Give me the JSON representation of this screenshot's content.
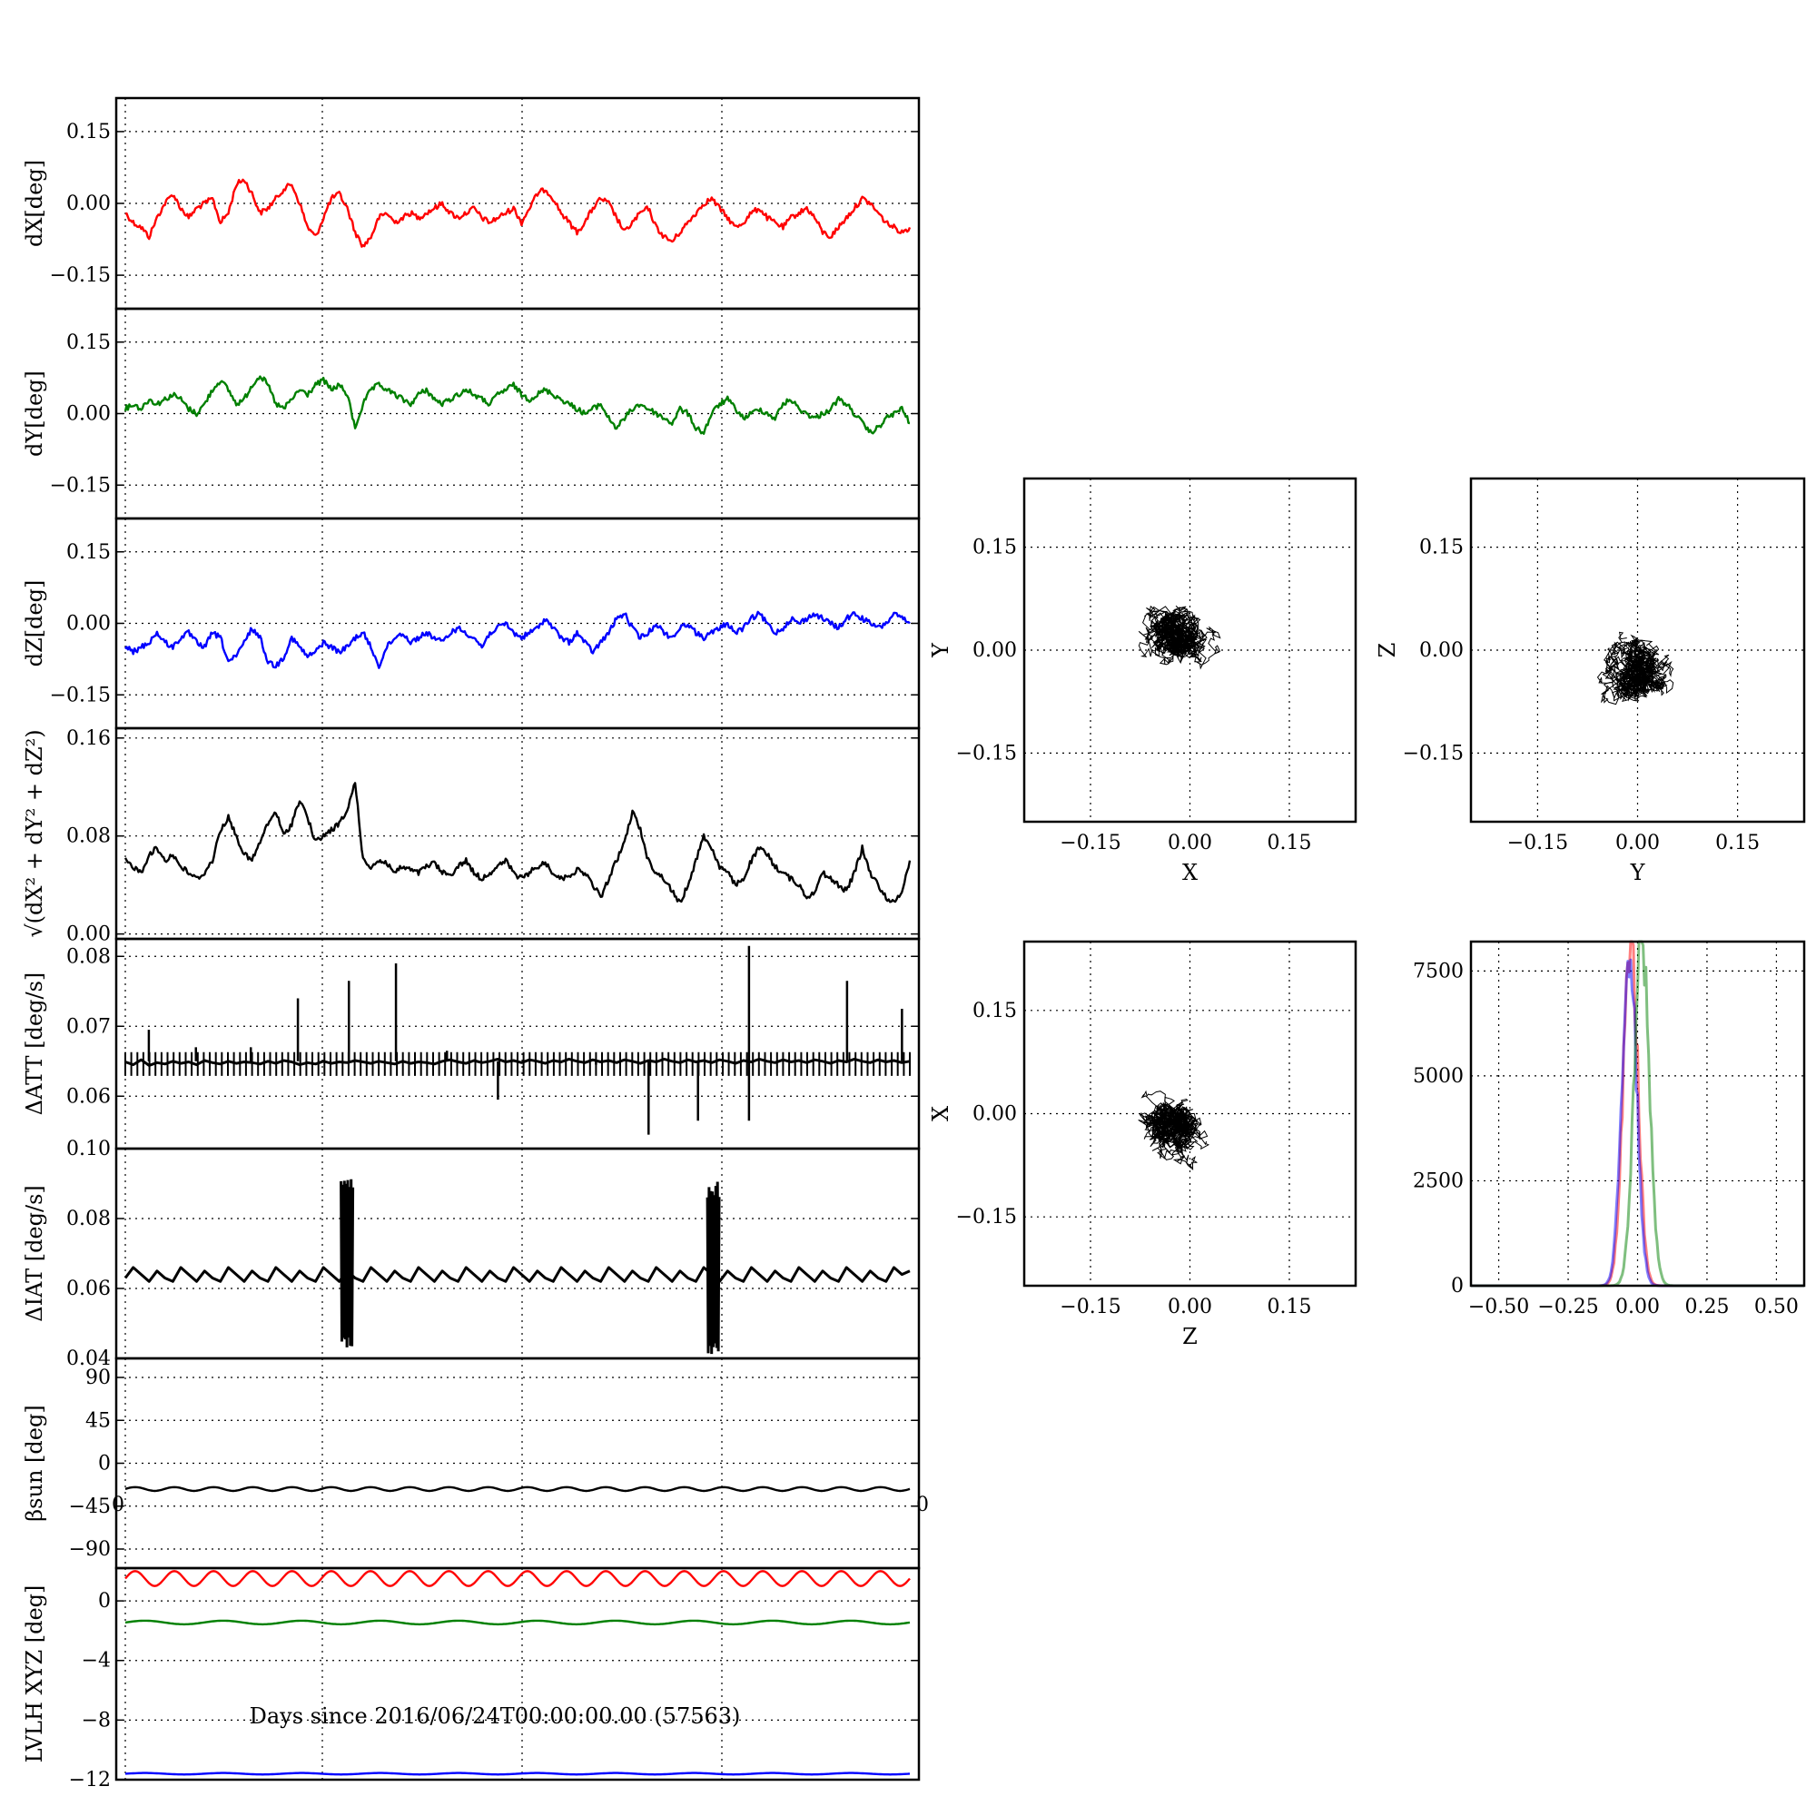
{
  "chart_data": [
    {
      "id": "dx",
      "type": "line",
      "ylabel": "dX[deg]",
      "ylim": [
        -0.22,
        0.22
      ],
      "yticks": [
        0.15,
        0.0,
        -0.15
      ],
      "ytick_labels": [
        "0.15",
        "0.00",
        "−0.15"
      ],
      "grid": true,
      "series": [
        {
          "color": "#ff0000",
          "values": [
            -0.02,
            -0.04,
            -0.05,
            -0.07,
            -0.03,
            0.0,
            0.02,
            -0.01,
            -0.03,
            -0.01,
            0.0,
            0.01,
            -0.04,
            -0.02,
            0.04,
            0.05,
            0.02,
            -0.02,
            -0.01,
            0.01,
            0.03,
            0.04,
            0.0,
            -0.05,
            -0.07,
            -0.03,
            0.01,
            0.02,
            -0.01,
            -0.06,
            -0.09,
            -0.07,
            -0.03,
            -0.02,
            -0.04,
            -0.03,
            -0.02,
            -0.03,
            -0.02,
            -0.01,
            0.0,
            -0.02,
            -0.03,
            -0.02,
            -0.01,
            -0.03,
            -0.04,
            -0.03,
            -0.02,
            -0.01,
            -0.04,
            -0.01,
            0.02,
            0.03,
            0.01,
            -0.02,
            -0.04,
            -0.06,
            -0.04,
            -0.01,
            0.01,
            0.0,
            -0.03,
            -0.06,
            -0.04,
            -0.02,
            -0.01,
            -0.05,
            -0.07,
            -0.08,
            -0.06,
            -0.04,
            -0.02,
            0.0,
            0.01,
            -0.01,
            -0.03,
            -0.05,
            -0.04,
            -0.02,
            -0.01,
            -0.03,
            -0.04,
            -0.05,
            -0.03,
            -0.02,
            -0.01,
            -0.03,
            -0.06,
            -0.07,
            -0.05,
            -0.03,
            -0.01,
            0.01,
            0.0,
            -0.02,
            -0.04,
            -0.05,
            -0.06,
            -0.05
          ]
        }
      ]
    },
    {
      "id": "dy",
      "type": "line",
      "ylabel": "dY[deg]",
      "ylim": [
        -0.22,
        0.22
      ],
      "yticks": [
        0.15,
        0.0,
        -0.15
      ],
      "ytick_labels": [
        "0.15",
        "0.00",
        "−0.15"
      ],
      "grid": true,
      "series": [
        {
          "color": "#008000",
          "values": [
            0.01,
            0.02,
            0.01,
            0.03,
            0.02,
            0.03,
            0.04,
            0.03,
            0.01,
            0.0,
            0.02,
            0.05,
            0.07,
            0.05,
            0.02,
            0.03,
            0.06,
            0.08,
            0.06,
            0.02,
            0.01,
            0.03,
            0.05,
            0.04,
            0.06,
            0.07,
            0.05,
            0.06,
            0.04,
            -0.03,
            0.02,
            0.05,
            0.06,
            0.05,
            0.04,
            0.03,
            0.02,
            0.04,
            0.05,
            0.03,
            0.02,
            0.03,
            0.04,
            0.05,
            0.04,
            0.03,
            0.02,
            0.04,
            0.05,
            0.06,
            0.04,
            0.03,
            0.04,
            0.05,
            0.04,
            0.03,
            0.02,
            0.01,
            0.0,
            0.01,
            0.02,
            -0.01,
            -0.03,
            -0.01,
            0.01,
            0.02,
            0.01,
            0.0,
            -0.01,
            -0.02,
            0.01,
            0.0,
            -0.03,
            -0.04,
            0.0,
            0.02,
            0.03,
            0.01,
            -0.01,
            0.0,
            0.01,
            0.0,
            -0.01,
            0.02,
            0.03,
            0.01,
            0.0,
            -0.01,
            0.0,
            0.01,
            0.03,
            0.02,
            0.0,
            -0.02,
            -0.04,
            -0.03,
            -0.01,
            0.0,
            0.01,
            -0.02
          ]
        }
      ]
    },
    {
      "id": "dz",
      "type": "line",
      "ylabel": "dZ[deg]",
      "ylim": [
        -0.22,
        0.22
      ],
      "yticks": [
        0.15,
        0.0,
        -0.15
      ],
      "ytick_labels": [
        "0.15",
        "0.00",
        "−0.15"
      ],
      "grid": true,
      "series": [
        {
          "color": "#0000ff",
          "values": [
            -0.05,
            -0.06,
            -0.05,
            -0.04,
            -0.02,
            -0.04,
            -0.05,
            -0.03,
            -0.02,
            -0.04,
            -0.05,
            -0.02,
            -0.03,
            -0.08,
            -0.07,
            -0.04,
            -0.01,
            -0.03,
            -0.08,
            -0.09,
            -0.07,
            -0.03,
            -0.05,
            -0.07,
            -0.06,
            -0.04,
            -0.05,
            -0.06,
            -0.05,
            -0.03,
            -0.02,
            -0.05,
            -0.09,
            -0.05,
            -0.03,
            -0.02,
            -0.04,
            -0.03,
            -0.02,
            -0.03,
            -0.04,
            -0.02,
            -0.01,
            -0.02,
            -0.03,
            -0.05,
            -0.02,
            -0.01,
            0.0,
            -0.02,
            -0.03,
            -0.02,
            -0.01,
            0.01,
            -0.01,
            -0.03,
            -0.04,
            -0.02,
            -0.04,
            -0.06,
            -0.04,
            -0.02,
            0.01,
            0.02,
            -0.01,
            -0.03,
            -0.02,
            0.0,
            -0.02,
            -0.03,
            -0.01,
            0.0,
            -0.02,
            -0.03,
            -0.02,
            -0.01,
            0.0,
            -0.02,
            -0.01,
            0.01,
            0.02,
            0.0,
            -0.02,
            -0.01,
            0.01,
            0.0,
            0.01,
            0.02,
            0.01,
            0.0,
            -0.01,
            0.01,
            0.02,
            0.01,
            0.0,
            -0.01,
            0.0,
            0.02,
            0.01,
            0.0
          ]
        }
      ]
    },
    {
      "id": "dr",
      "type": "line",
      "ylabel": "√(dX² + dY² + dZ²)",
      "ylim": [
        -0.004,
        0.168
      ],
      "yticks": [
        0.16,
        0.08,
        0.0
      ],
      "ytick_labels": [
        "0.16",
        "0.08",
        "0.00"
      ],
      "grid": true,
      "series": [
        {
          "color": "#000000",
          "values": [
            0.06,
            0.055,
            0.05,
            0.065,
            0.07,
            0.06,
            0.065,
            0.055,
            0.05,
            0.045,
            0.05,
            0.06,
            0.085,
            0.095,
            0.08,
            0.065,
            0.06,
            0.075,
            0.09,
            0.1,
            0.08,
            0.09,
            0.11,
            0.095,
            0.075,
            0.08,
            0.085,
            0.09,
            0.1,
            0.125,
            0.06,
            0.055,
            0.06,
            0.058,
            0.05,
            0.055,
            0.052,
            0.05,
            0.055,
            0.058,
            0.05,
            0.048,
            0.055,
            0.06,
            0.05,
            0.045,
            0.05,
            0.055,
            0.06,
            0.05,
            0.045,
            0.05,
            0.055,
            0.058,
            0.05,
            0.045,
            0.048,
            0.052,
            0.05,
            0.04,
            0.03,
            0.045,
            0.06,
            0.075,
            0.1,
            0.085,
            0.06,
            0.05,
            0.045,
            0.035,
            0.025,
            0.04,
            0.06,
            0.08,
            0.07,
            0.055,
            0.05,
            0.04,
            0.045,
            0.06,
            0.07,
            0.065,
            0.055,
            0.05,
            0.045,
            0.04,
            0.03,
            0.035,
            0.05,
            0.045,
            0.04,
            0.035,
            0.05,
            0.07,
            0.05,
            0.04,
            0.03,
            0.025,
            0.035,
            0.06
          ]
        }
      ]
    },
    {
      "id": "datt",
      "type": "line",
      "ylabel": "ΔATT [deg/s]",
      "ylim": [
        0.0525,
        0.0825
      ],
      "yticks": [
        0.08,
        0.07,
        0.06
      ],
      "ytick_labels": [
        "0.08",
        "0.07",
        "0.06"
      ],
      "grid": true,
      "series": [
        {
          "color": "#000000",
          "values": [
            0.0649,
            0.0645,
            0.0652,
            0.0644,
            0.0648,
            0.0646,
            0.065,
            0.0647,
            0.0649,
            0.0645,
            0.0651,
            0.0648,
            0.0646,
            0.065,
            0.0647,
            0.0649,
            0.0648,
            0.0646,
            0.065,
            0.0647,
            0.0651,
            0.0649,
            0.0645,
            0.0648,
            0.0646,
            0.065,
            0.0647,
            0.0649,
            0.0648,
            0.0651,
            0.0649,
            0.0647,
            0.065,
            0.0648,
            0.0646,
            0.065,
            0.0647,
            0.0649,
            0.0648,
            0.0646,
            0.065,
            0.0652,
            0.0649,
            0.0647,
            0.0651,
            0.0648,
            0.065,
            0.0653,
            0.0649,
            0.0651,
            0.0648,
            0.0652,
            0.065,
            0.0647,
            0.0651,
            0.0649,
            0.0653,
            0.065,
            0.0648,
            0.0652,
            0.0649,
            0.0651,
            0.0648,
            0.0652,
            0.065,
            0.0647,
            0.0651,
            0.0649,
            0.0653,
            0.065,
            0.0648,
            0.0652,
            0.0649,
            0.0651,
            0.0648,
            0.0652,
            0.065,
            0.0647,
            0.0651,
            0.0649,
            0.0653,
            0.065,
            0.0648,
            0.0652,
            0.0649,
            0.0651,
            0.0648,
            0.0652,
            0.065,
            0.0647,
            0.0651,
            0.0649,
            0.0653,
            0.065,
            0.0648,
            0.0652,
            0.0649,
            0.0651,
            0.0648,
            0.065
          ]
        }
      ],
      "spikes_up": [
        [
          0.03,
          0.0695
        ],
        [
          0.09,
          0.067
        ],
        [
          0.16,
          0.067
        ],
        [
          0.22,
          0.074
        ],
        [
          0.285,
          0.0765
        ],
        [
          0.345,
          0.079
        ],
        [
          0.41,
          0.0665
        ],
        [
          0.6,
          0.0645
        ],
        [
          0.795,
          0.0815
        ],
        [
          0.92,
          0.0765
        ],
        [
          0.99,
          0.0725
        ]
      ],
      "spikes_down": [
        [
          0.475,
          0.0595
        ],
        [
          0.667,
          0.0545
        ],
        [
          0.73,
          0.0565
        ],
        [
          0.795,
          0.0565
        ]
      ]
    },
    {
      "id": "diat",
      "type": "line",
      "ylabel": "ΔIAT [deg/s]",
      "ylim": [
        0.04,
        0.1
      ],
      "yticks": [
        0.1,
        0.08,
        0.06,
        0.04
      ],
      "ytick_labels": [
        "0.10",
        "0.08",
        "0.06",
        "0.04"
      ],
      "grid": true,
      "series": [
        {
          "color": "#000000",
          "values": [
            0.063,
            0.066,
            0.064,
            0.062,
            0.065,
            0.063,
            0.062,
            0.066,
            0.064,
            0.062,
            0.065,
            0.063,
            0.062,
            0.066,
            0.064,
            0.062,
            0.065,
            0.063,
            0.062,
            0.066,
            0.064,
            0.062,
            0.065,
            0.063,
            0.062,
            0.066,
            0.064,
            0.062,
            0.065,
            0.063,
            0.062,
            0.066,
            0.064,
            0.062,
            0.065,
            0.063,
            0.062,
            0.066,
            0.064,
            0.062,
            0.065,
            0.063,
            0.062,
            0.066,
            0.064,
            0.062,
            0.065,
            0.063,
            0.062,
            0.066,
            0.064,
            0.062,
            0.065,
            0.063,
            0.062,
            0.066,
            0.064,
            0.062,
            0.065,
            0.063,
            0.062,
            0.066,
            0.064,
            0.062,
            0.065,
            0.063,
            0.062,
            0.066,
            0.064,
            0.062,
            0.065,
            0.063,
            0.062,
            0.066,
            0.064,
            0.062,
            0.065,
            0.063,
            0.062,
            0.066,
            0.064,
            0.062,
            0.065,
            0.063,
            0.062,
            0.066,
            0.064,
            0.062,
            0.065,
            0.063,
            0.062,
            0.066,
            0.064,
            0.062,
            0.065,
            0.063,
            0.062,
            0.066,
            0.064,
            0.065
          ]
        }
      ],
      "bursts": [
        {
          "x_from": 0.275,
          "x_to": 0.29,
          "ymin": 0.042,
          "ymax": 0.092
        },
        {
          "x_from": 0.742,
          "x_to": 0.757,
          "ymin": 0.041,
          "ymax": 0.092
        }
      ]
    },
    {
      "id": "beta",
      "type": "line",
      "ylabel": "βsun [deg]",
      "ylim": [
        -110,
        110
      ],
      "yticks": [
        90,
        45,
        0,
        -45,
        -90
      ],
      "ytick_labels": [
        "90",
        "45",
        "0",
        "−45",
        "−90"
      ],
      "grid": true,
      "series": [
        {
          "color": "#000000",
          "baseline": -27,
          "amplitude": 2,
          "cycles": 20
        }
      ]
    },
    {
      "id": "lvlh",
      "type": "line",
      "ylabel": "LVLH XYZ [deg]",
      "ylim": [
        -12,
        2.2
      ],
      "yticks": [
        0,
        -4,
        -8,
        -12
      ],
      "ytick_labels": [
        "0",
        "−4",
        "−8",
        "−12"
      ],
      "grid": true,
      "xlabel": "Days since 2016/06/24T00:00:00.00 (57563)",
      "xtick_labels": [
        "0",
        "0"
      ],
      "series": [
        {
          "color": "#ff0000",
          "baseline": 1.5,
          "amplitude": 0.5,
          "cycles": 20
        },
        {
          "color": "#008000",
          "baseline": -1.45,
          "amplitude": 0.12,
          "cycles": 10
        },
        {
          "color": "#0000ff",
          "baseline": -11.6,
          "amplitude": 0.05,
          "cycles": 10
        }
      ]
    },
    {
      "id": "xy",
      "type": "scatter",
      "xlabel": "X",
      "ylabel": "Y",
      "xlim": [
        -0.25,
        0.25
      ],
      "ylim": [
        -0.25,
        0.25
      ],
      "ticks": [
        -0.15,
        0.0,
        0.15
      ],
      "tick_labels": [
        "−0.15",
        "0.00",
        "0.15"
      ],
      "grid": true,
      "cloud": {
        "cx": -0.02,
        "cy": 0.02,
        "sx": 0.03,
        "sy": 0.022,
        "range_x": [
          -0.09,
          0.055
        ],
        "range_y": [
          -0.045,
          0.08
        ]
      }
    },
    {
      "id": "yz",
      "type": "scatter",
      "xlabel": "Y",
      "ylabel": "Z",
      "xlim": [
        -0.25,
        0.25
      ],
      "ylim": [
        -0.25,
        0.25
      ],
      "ticks": [
        -0.15,
        0.0,
        0.15
      ],
      "tick_labels": [
        "−0.15",
        "0.00",
        "0.15"
      ],
      "grid": true,
      "cloud": {
        "cx": 0.0,
        "cy": -0.03,
        "sx": 0.025,
        "sy": 0.025,
        "range_x": [
          -0.06,
          0.085
        ],
        "range_y": [
          -0.105,
          0.035
        ]
      }
    },
    {
      "id": "zx",
      "type": "scatter",
      "xlabel": "Z",
      "ylabel": "X",
      "xlim": [
        -0.25,
        0.25
      ],
      "ylim": [
        -0.25,
        0.25
      ],
      "ticks": [
        -0.15,
        0.0,
        0.15
      ],
      "tick_labels": [
        "−0.15",
        "0.00",
        "0.15"
      ],
      "grid": true,
      "cloud": {
        "cx": -0.02,
        "cy": -0.02,
        "sx": 0.025,
        "sy": 0.025,
        "range_x": [
          -0.1,
          0.03
        ],
        "range_y": [
          -0.085,
          0.06
        ]
      }
    },
    {
      "id": "hist",
      "type": "line",
      "xlim": [
        -0.6,
        0.6
      ],
      "ylim": [
        0,
        8200
      ],
      "xticks": [
        -0.5,
        -0.25,
        0.0,
        0.25,
        0.5
      ],
      "xtick_labels": [
        "−0.50",
        "−0.25",
        "0.00",
        "0.25",
        "0.50"
      ],
      "yticks": [
        0,
        2500,
        5000,
        7500
      ],
      "ytick_labels": [
        "0",
        "2500",
        "5000",
        "7500"
      ],
      "grid": true,
      "series": [
        {
          "color": "#ff0000",
          "opacity": 0.5,
          "center": -0.025,
          "sigma": 0.026,
          "peak": 8300
        },
        {
          "color": "#0000ff",
          "opacity": 0.5,
          "center": -0.03,
          "sigma": 0.026,
          "peak": 8150
        },
        {
          "color": "#008000",
          "opacity": 0.5,
          "center": 0.015,
          "sigma": 0.027,
          "peak": 8250
        }
      ]
    }
  ]
}
